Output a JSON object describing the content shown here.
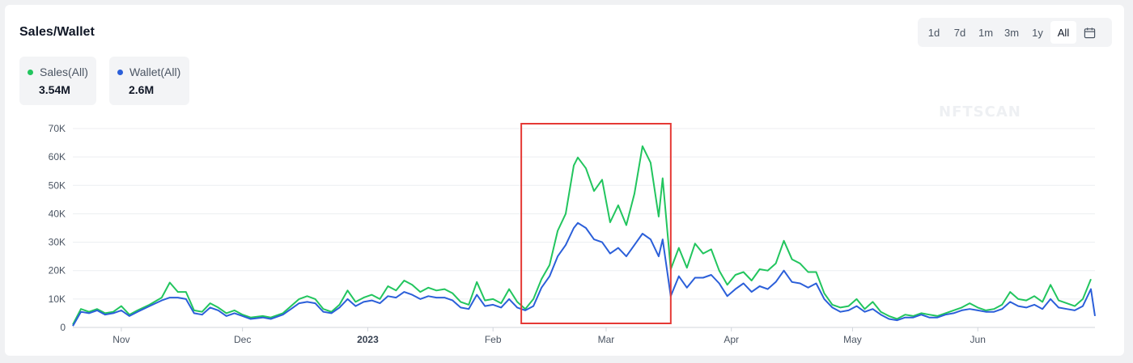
{
  "header": {
    "title": "Sales/Wallet",
    "ranges": [
      "1d",
      "7d",
      "1m",
      "3m",
      "1y",
      "All"
    ],
    "active_range": "All"
  },
  "legend": [
    {
      "label": "Sales(All)",
      "value": "3.54M",
      "color": "#22c55e"
    },
    {
      "label": "Wallet(All)",
      "value": "2.6M",
      "color": "#2b5fd9"
    }
  ],
  "watermark": "NFTSCAN",
  "chart_data": {
    "type": "line",
    "ylim": [
      0,
      70000
    ],
    "yticks": [
      {
        "label": "0",
        "value": 0
      },
      {
        "label": "10K",
        "value": 10000
      },
      {
        "label": "20K",
        "value": 20000
      },
      {
        "label": "30K",
        "value": 30000
      },
      {
        "label": "40K",
        "value": 40000
      },
      {
        "label": "50K",
        "value": 50000
      },
      {
        "label": "60K",
        "value": 60000
      },
      {
        "label": "70K",
        "value": 70000
      }
    ],
    "x_domain": [
      "2022-10-20",
      "2023-06-30"
    ],
    "xticks": [
      {
        "label": "Nov",
        "date": "2022-11-01"
      },
      {
        "label": "Dec",
        "date": "2022-12-01"
      },
      {
        "label": "2023",
        "date": "2023-01-01",
        "bold": true
      },
      {
        "label": "Feb",
        "date": "2023-02-01"
      },
      {
        "label": "Mar",
        "date": "2023-03-01"
      },
      {
        "label": "Apr",
        "date": "2023-04-01"
      },
      {
        "label": "May",
        "date": "2023-05-01"
      },
      {
        "label": "Jun",
        "date": "2023-06-01"
      }
    ],
    "grid": true,
    "highlight": {
      "from": "2023-02-08",
      "to": "2023-03-17",
      "color": "#e53935"
    },
    "series": [
      {
        "name": "Sales(All)",
        "color": "#22c55e",
        "points": [
          [
            "2022-10-20",
            1000
          ],
          [
            "2022-10-22",
            6500
          ],
          [
            "2022-10-24",
            5500
          ],
          [
            "2022-10-26",
            6500
          ],
          [
            "2022-10-28",
            5000
          ],
          [
            "2022-10-30",
            5500
          ],
          [
            "2022-11-01",
            7500
          ],
          [
            "2022-11-03",
            4500
          ],
          [
            "2022-11-05",
            6000
          ],
          [
            "2022-11-08",
            8000
          ],
          [
            "2022-11-11",
            10500
          ],
          [
            "2022-11-13",
            15800
          ],
          [
            "2022-11-15",
            12500
          ],
          [
            "2022-11-17",
            12500
          ],
          [
            "2022-11-19",
            6000
          ],
          [
            "2022-11-21",
            5500
          ],
          [
            "2022-11-23",
            8500
          ],
          [
            "2022-11-25",
            7000
          ],
          [
            "2022-11-27",
            5000
          ],
          [
            "2022-11-29",
            6000
          ],
          [
            "2022-12-01",
            4500
          ],
          [
            "2022-12-03",
            3500
          ],
          [
            "2022-12-06",
            4000
          ],
          [
            "2022-12-08",
            3500
          ],
          [
            "2022-12-11",
            5000
          ],
          [
            "2022-12-13",
            7500
          ],
          [
            "2022-12-15",
            10000
          ],
          [
            "2022-12-17",
            11000
          ],
          [
            "2022-12-19",
            10000
          ],
          [
            "2022-12-21",
            6500
          ],
          [
            "2022-12-23",
            5500
          ],
          [
            "2022-12-25",
            8000
          ],
          [
            "2022-12-27",
            13000
          ],
          [
            "2022-12-29",
            9000
          ],
          [
            "2022-12-31",
            10500
          ],
          [
            "2023-01-02",
            11500
          ],
          [
            "2023-01-04",
            10000
          ],
          [
            "2023-01-06",
            14500
          ],
          [
            "2023-01-08",
            13000
          ],
          [
            "2023-01-10",
            16500
          ],
          [
            "2023-01-12",
            15000
          ],
          [
            "2023-01-14",
            12500
          ],
          [
            "2023-01-16",
            14000
          ],
          [
            "2023-01-18",
            13000
          ],
          [
            "2023-01-20",
            13500
          ],
          [
            "2023-01-22",
            12000
          ],
          [
            "2023-01-24",
            9000
          ],
          [
            "2023-01-26",
            8000
          ],
          [
            "2023-01-28",
            16000
          ],
          [
            "2023-01-30",
            9500
          ],
          [
            "2023-02-01",
            10000
          ],
          [
            "2023-02-03",
            8500
          ],
          [
            "2023-02-05",
            13500
          ],
          [
            "2023-02-07",
            9000
          ],
          [
            "2023-02-09",
            6500
          ],
          [
            "2023-02-11",
            10000
          ],
          [
            "2023-02-13",
            17000
          ],
          [
            "2023-02-15",
            22000
          ],
          [
            "2023-02-17",
            34000
          ],
          [
            "2023-02-19",
            40000
          ],
          [
            "2023-02-21",
            57000
          ],
          [
            "2023-02-22",
            59800
          ],
          [
            "2023-02-24",
            56000
          ],
          [
            "2023-02-26",
            48000
          ],
          [
            "2023-02-28",
            52000
          ],
          [
            "2023-03-02",
            37000
          ],
          [
            "2023-03-04",
            43000
          ],
          [
            "2023-03-06",
            36000
          ],
          [
            "2023-03-08",
            47000
          ],
          [
            "2023-03-10",
            63800
          ],
          [
            "2023-03-12",
            58000
          ],
          [
            "2023-03-14",
            39000
          ],
          [
            "2023-03-15",
            52500
          ],
          [
            "2023-03-17",
            20500
          ],
          [
            "2023-03-19",
            28000
          ],
          [
            "2023-03-21",
            21000
          ],
          [
            "2023-03-23",
            29500
          ],
          [
            "2023-03-25",
            26000
          ],
          [
            "2023-03-27",
            27500
          ],
          [
            "2023-03-29",
            20000
          ],
          [
            "2023-03-31",
            15000
          ],
          [
            "2023-04-02",
            18500
          ],
          [
            "2023-04-04",
            19500
          ],
          [
            "2023-04-06",
            16500
          ],
          [
            "2023-04-08",
            20500
          ],
          [
            "2023-04-10",
            20000
          ],
          [
            "2023-04-12",
            22500
          ],
          [
            "2023-04-14",
            30500
          ],
          [
            "2023-04-16",
            24000
          ],
          [
            "2023-04-18",
            22500
          ],
          [
            "2023-04-20",
            19500
          ],
          [
            "2023-04-22",
            19500
          ],
          [
            "2023-04-24",
            12000
          ],
          [
            "2023-04-26",
            8000
          ],
          [
            "2023-04-28",
            7000
          ],
          [
            "2023-04-30",
            7500
          ],
          [
            "2023-05-02",
            10000
          ],
          [
            "2023-05-04",
            6500
          ],
          [
            "2023-05-06",
            9000
          ],
          [
            "2023-05-08",
            5500
          ],
          [
            "2023-05-10",
            4000
          ],
          [
            "2023-05-12",
            3000
          ],
          [
            "2023-05-14",
            4500
          ],
          [
            "2023-05-16",
            4000
          ],
          [
            "2023-05-18",
            5000
          ],
          [
            "2023-05-20",
            4500
          ],
          [
            "2023-05-22",
            4000
          ],
          [
            "2023-05-24",
            5000
          ],
          [
            "2023-05-26",
            6000
          ],
          [
            "2023-05-28",
            7000
          ],
          [
            "2023-05-30",
            8500
          ],
          [
            "2023-06-01",
            7000
          ],
          [
            "2023-06-03",
            6000
          ],
          [
            "2023-06-05",
            6500
          ],
          [
            "2023-06-07",
            8000
          ],
          [
            "2023-06-09",
            12500
          ],
          [
            "2023-06-11",
            10000
          ],
          [
            "2023-06-13",
            9500
          ],
          [
            "2023-06-15",
            11000
          ],
          [
            "2023-06-17",
            9000
          ],
          [
            "2023-06-19",
            15000
          ],
          [
            "2023-06-21",
            9500
          ],
          [
            "2023-06-23",
            8500
          ],
          [
            "2023-06-25",
            7500
          ],
          [
            "2023-06-27",
            10000
          ],
          [
            "2023-06-29",
            17000
          ]
        ]
      },
      {
        "name": "Wallet(All)",
        "color": "#2b5fd9",
        "points": [
          [
            "2022-10-20",
            500
          ],
          [
            "2022-10-22",
            5500
          ],
          [
            "2022-10-24",
            5000
          ],
          [
            "2022-10-26",
            6000
          ],
          [
            "2022-10-28",
            4500
          ],
          [
            "2022-10-30",
            5000
          ],
          [
            "2022-11-01",
            6000
          ],
          [
            "2022-11-03",
            4000
          ],
          [
            "2022-11-05",
            5500
          ],
          [
            "2022-11-08",
            7500
          ],
          [
            "2022-11-11",
            9500
          ],
          [
            "2022-11-13",
            10500
          ],
          [
            "2022-11-15",
            10500
          ],
          [
            "2022-11-17",
            10000
          ],
          [
            "2022-11-19",
            5000
          ],
          [
            "2022-11-21",
            4500
          ],
          [
            "2022-11-23",
            7000
          ],
          [
            "2022-11-25",
            6000
          ],
          [
            "2022-11-27",
            4000
          ],
          [
            "2022-11-29",
            5000
          ],
          [
            "2022-12-01",
            4000
          ],
          [
            "2022-12-03",
            3000
          ],
          [
            "2022-12-06",
            3500
          ],
          [
            "2022-12-08",
            3000
          ],
          [
            "2022-12-11",
            4500
          ],
          [
            "2022-12-13",
            6500
          ],
          [
            "2022-12-15",
            8500
          ],
          [
            "2022-12-17",
            9000
          ],
          [
            "2022-12-19",
            8500
          ],
          [
            "2022-12-21",
            5500
          ],
          [
            "2022-12-23",
            5000
          ],
          [
            "2022-12-25",
            7000
          ],
          [
            "2022-12-27",
            10000
          ],
          [
            "2022-12-29",
            7500
          ],
          [
            "2022-12-31",
            9000
          ],
          [
            "2023-01-02",
            9500
          ],
          [
            "2023-01-04",
            8500
          ],
          [
            "2023-01-06",
            11000
          ],
          [
            "2023-01-08",
            10500
          ],
          [
            "2023-01-10",
            12500
          ],
          [
            "2023-01-12",
            11500
          ],
          [
            "2023-01-14",
            10000
          ],
          [
            "2023-01-16",
            11000
          ],
          [
            "2023-01-18",
            10500
          ],
          [
            "2023-01-20",
            10500
          ],
          [
            "2023-01-22",
            9500
          ],
          [
            "2023-01-24",
            7000
          ],
          [
            "2023-01-26",
            6500
          ],
          [
            "2023-01-28",
            11500
          ],
          [
            "2023-01-30",
            7500
          ],
          [
            "2023-02-01",
            8000
          ],
          [
            "2023-02-03",
            7000
          ],
          [
            "2023-02-05",
            10000
          ],
          [
            "2023-02-07",
            7000
          ],
          [
            "2023-02-09",
            6000
          ],
          [
            "2023-02-11",
            7500
          ],
          [
            "2023-02-13",
            14000
          ],
          [
            "2023-02-15",
            18000
          ],
          [
            "2023-02-17",
            25000
          ],
          [
            "2023-02-19",
            29000
          ],
          [
            "2023-02-21",
            35000
          ],
          [
            "2023-02-22",
            36800
          ],
          [
            "2023-02-24",
            35000
          ],
          [
            "2023-02-26",
            31000
          ],
          [
            "2023-02-28",
            30000
          ],
          [
            "2023-03-02",
            26000
          ],
          [
            "2023-03-04",
            28000
          ],
          [
            "2023-03-06",
            25000
          ],
          [
            "2023-03-08",
            29000
          ],
          [
            "2023-03-10",
            33000
          ],
          [
            "2023-03-12",
            31000
          ],
          [
            "2023-03-14",
            25000
          ],
          [
            "2023-03-15",
            31000
          ],
          [
            "2023-03-17",
            11000
          ],
          [
            "2023-03-19",
            18000
          ],
          [
            "2023-03-21",
            14000
          ],
          [
            "2023-03-23",
            17500
          ],
          [
            "2023-03-25",
            17500
          ],
          [
            "2023-03-27",
            18500
          ],
          [
            "2023-03-29",
            15500
          ],
          [
            "2023-03-31",
            11000
          ],
          [
            "2023-04-02",
            13500
          ],
          [
            "2023-04-04",
            15500
          ],
          [
            "2023-04-06",
            12500
          ],
          [
            "2023-04-08",
            14500
          ],
          [
            "2023-04-10",
            13500
          ],
          [
            "2023-04-12",
            16000
          ],
          [
            "2023-04-14",
            20000
          ],
          [
            "2023-04-16",
            16000
          ],
          [
            "2023-04-18",
            15500
          ],
          [
            "2023-04-20",
            14000
          ],
          [
            "2023-04-22",
            15500
          ],
          [
            "2023-04-24",
            10000
          ],
          [
            "2023-04-26",
            7000
          ],
          [
            "2023-04-28",
            5500
          ],
          [
            "2023-04-30",
            6000
          ],
          [
            "2023-05-02",
            7500
          ],
          [
            "2023-05-04",
            5500
          ],
          [
            "2023-05-06",
            6500
          ],
          [
            "2023-05-08",
            4500
          ],
          [
            "2023-05-10",
            3000
          ],
          [
            "2023-05-12",
            2500
          ],
          [
            "2023-05-14",
            3500
          ],
          [
            "2023-05-16",
            3500
          ],
          [
            "2023-05-18",
            4500
          ],
          [
            "2023-05-20",
            3500
          ],
          [
            "2023-05-22",
            3500
          ],
          [
            "2023-05-24",
            4500
          ],
          [
            "2023-05-26",
            5000
          ],
          [
            "2023-05-28",
            6000
          ],
          [
            "2023-05-30",
            6500
          ],
          [
            "2023-06-01",
            6000
          ],
          [
            "2023-06-03",
            5500
          ],
          [
            "2023-06-05",
            5500
          ],
          [
            "2023-06-07",
            6500
          ],
          [
            "2023-06-09",
            9000
          ],
          [
            "2023-06-11",
            7500
          ],
          [
            "2023-06-13",
            7000
          ],
          [
            "2023-06-15",
            8000
          ],
          [
            "2023-06-17",
            6500
          ],
          [
            "2023-06-19",
            10000
          ],
          [
            "2023-06-21",
            7000
          ],
          [
            "2023-06-23",
            6500
          ],
          [
            "2023-06-25",
            6000
          ],
          [
            "2023-06-27",
            7500
          ],
          [
            "2023-06-29",
            13500
          ],
          [
            "2023-06-30",
            4000
          ]
        ]
      }
    ]
  }
}
